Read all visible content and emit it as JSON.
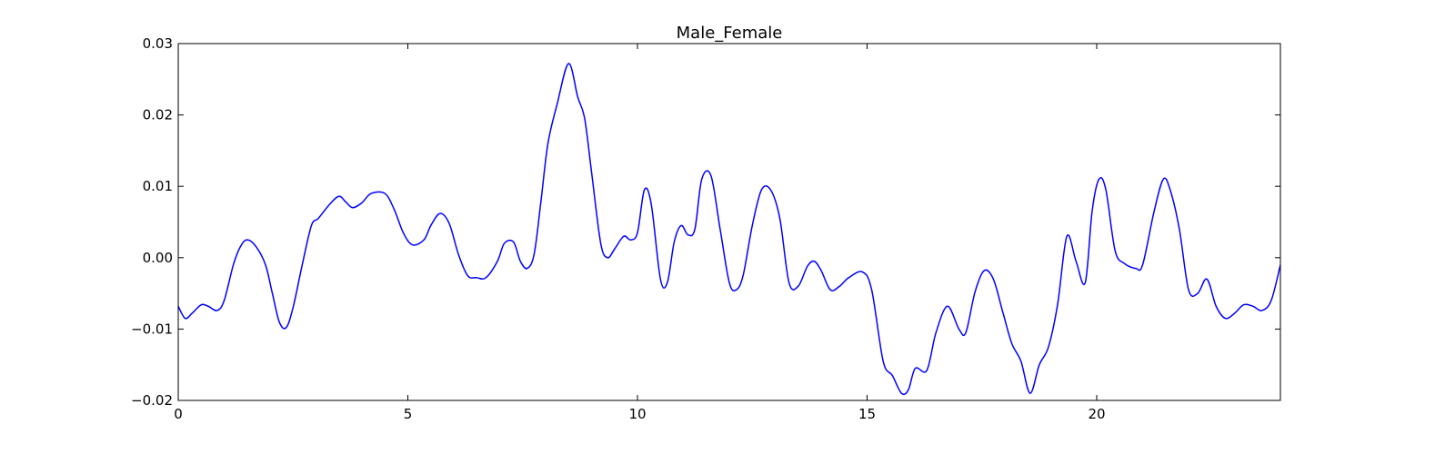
{
  "chart_data": {
    "type": "line",
    "title": "Male_Female",
    "xlabel": "",
    "ylabel": "",
    "xlim": [
      0,
      24
    ],
    "ylim": [
      -0.02,
      0.03
    ],
    "xticks": [
      0,
      5,
      10,
      15,
      20
    ],
    "xtick_labels": [
      "0",
      "5",
      "10",
      "15",
      "20"
    ],
    "yticks": [
      -0.02,
      -0.01,
      0.0,
      0.01,
      0.02,
      0.03
    ],
    "ytick_labels": [
      "−0.02",
      "−0.01",
      "0.00",
      "0.01",
      "0.02",
      "0.03"
    ],
    "grid": false,
    "legend": "none",
    "series": [
      {
        "color": "#0000ff",
        "x": [
          0,
          0.15,
          0.3,
          0.5,
          0.65,
          0.85,
          1.0,
          1.2,
          1.35,
          1.5,
          1.7,
          1.9,
          2.05,
          2.2,
          2.35,
          2.5,
          2.7,
          2.9,
          3.05,
          3.3,
          3.5,
          3.65,
          3.8,
          4.0,
          4.2,
          4.5,
          4.7,
          4.9,
          5.1,
          5.35,
          5.5,
          5.7,
          5.9,
          6.1,
          6.3,
          6.5,
          6.7,
          6.95,
          7.1,
          7.3,
          7.45,
          7.6,
          7.75,
          7.9,
          8.05,
          8.25,
          8.5,
          8.7,
          8.85,
          9.0,
          9.2,
          9.35,
          9.5,
          9.7,
          9.85,
          10.0,
          10.15,
          10.3,
          10.5,
          10.65,
          10.8,
          10.95,
          11.1,
          11.25,
          11.4,
          11.6,
          11.8,
          12.0,
          12.15,
          12.3,
          12.5,
          12.7,
          12.9,
          13.1,
          13.3,
          13.5,
          13.7,
          13.85,
          14.0,
          14.2,
          14.4,
          14.6,
          14.9,
          15.1,
          15.35,
          15.55,
          15.75,
          15.9,
          16.05,
          16.3,
          16.5,
          16.75,
          17.0,
          17.15,
          17.35,
          17.55,
          17.75,
          17.95,
          18.15,
          18.35,
          18.55,
          18.75,
          18.95,
          19.15,
          19.35,
          19.55,
          19.75,
          19.9,
          20.05,
          20.2,
          20.4,
          20.6,
          20.85,
          21.0,
          21.25,
          21.45,
          21.6,
          21.8,
          22.0,
          22.2,
          22.4,
          22.6,
          22.8,
          23.0,
          23.2,
          23.4,
          23.6,
          23.8,
          24.0
        ],
        "y": [
          -0.0068,
          -0.0085,
          -0.0078,
          -0.0066,
          -0.0068,
          -0.0074,
          -0.006,
          -0.001,
          0.0015,
          0.0025,
          0.0015,
          -0.001,
          -0.005,
          -0.009,
          -0.0098,
          -0.007,
          -0.001,
          0.0045,
          0.0055,
          0.0075,
          0.0086,
          0.0078,
          0.007,
          0.0077,
          0.009,
          0.009,
          0.0068,
          0.0035,
          0.0018,
          0.0025,
          0.0045,
          0.0062,
          0.0048,
          0.0005,
          -0.0025,
          -0.0028,
          -0.0028,
          -0.0005,
          0.002,
          0.0022,
          -0.0005,
          -0.0015,
          0.0005,
          0.008,
          0.016,
          0.0215,
          0.0272,
          0.0225,
          0.0195,
          0.012,
          0.002,
          0.0,
          0.0012,
          0.003,
          0.0025,
          0.0035,
          0.0095,
          0.0075,
          -0.003,
          -0.0035,
          0.0022,
          0.0045,
          0.0032,
          0.004,
          0.011,
          0.0115,
          0.004,
          -0.0035,
          -0.0045,
          -0.0025,
          0.0045,
          0.0095,
          0.0095,
          0.0055,
          -0.0035,
          -0.004,
          -0.0012,
          -0.0005,
          -0.0018,
          -0.0045,
          -0.004,
          -0.0028,
          -0.002,
          -0.0045,
          -0.0145,
          -0.0165,
          -0.019,
          -0.0185,
          -0.0155,
          -0.0158,
          -0.0105,
          -0.0068,
          -0.01,
          -0.0105,
          -0.0048,
          -0.0018,
          -0.003,
          -0.0075,
          -0.012,
          -0.0145,
          -0.019,
          -0.015,
          -0.0125,
          -0.0065,
          0.003,
          -0.0005,
          -0.0035,
          0.0065,
          0.011,
          0.0095,
          0.001,
          -0.0008,
          -0.0015,
          -0.001,
          0.0065,
          0.011,
          0.0095,
          0.004,
          -0.0045,
          -0.005,
          -0.003,
          -0.0068,
          -0.0085,
          -0.0078,
          -0.0066,
          -0.0068,
          -0.0074,
          -0.006,
          -0.001
        ]
      }
    ]
  }
}
